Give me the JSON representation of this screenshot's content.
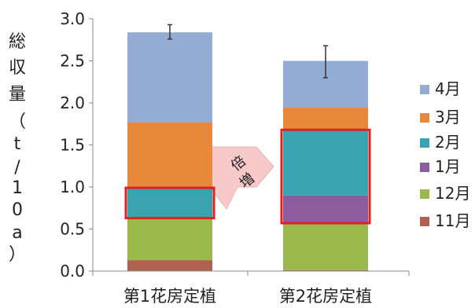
{
  "chart_data": {
    "type": "bar",
    "stacked": true,
    "ylabel": "総収量（t/10a）",
    "ylabel_chars": [
      "総",
      "収",
      "量",
      "（",
      "t",
      "/",
      "1",
      "0",
      "a",
      "）"
    ],
    "ylim": [
      0,
      3.0
    ],
    "yticks": [
      "0.0",
      "0.5",
      "1.0",
      "1.5",
      "2.0",
      "2.5",
      "3.0"
    ],
    "categories": [
      "第1花房定植",
      "第2花房定植"
    ],
    "series": [
      {
        "name": "11月",
        "color": "#b0604e",
        "values": [
          0.13,
          0.01
        ]
      },
      {
        "name": "12月",
        "color": "#9ab84c",
        "values": [
          0.5,
          0.56
        ]
      },
      {
        "name": "1月",
        "color": "#8c5c9c",
        "values": [
          0.0,
          0.33
        ]
      },
      {
        "name": "2月",
        "color": "#3aa3b0",
        "values": [
          0.36,
          0.78
        ]
      },
      {
        "name": "3月",
        "color": "#e8883a",
        "values": [
          0.78,
          0.27
        ]
      },
      {
        "name": "4月",
        "color": "#93acd3",
        "values": [
          1.07,
          0.55
        ]
      }
    ],
    "error_bars": [
      {
        "category": "第1花房定植",
        "low": 2.76,
        "high": 2.93
      },
      {
        "category": "第2花房定植",
        "low": 2.3,
        "high": 2.68
      }
    ],
    "legend_order": [
      "4月",
      "3月",
      "2月",
      "1月",
      "12月",
      "11月"
    ],
    "legend_position": "right",
    "highlight_boxes": [
      {
        "category": "第1花房定植",
        "from": 0.63,
        "to": 0.99
      },
      {
        "category": "第2花房定植",
        "from": 0.57,
        "to": 1.68
      }
    ],
    "highlight_color": "#e02020",
    "annotation": {
      "text": "倍増",
      "chars": [
        "倍",
        "増"
      ],
      "arrow_color": "#f7c4c4"
    }
  }
}
